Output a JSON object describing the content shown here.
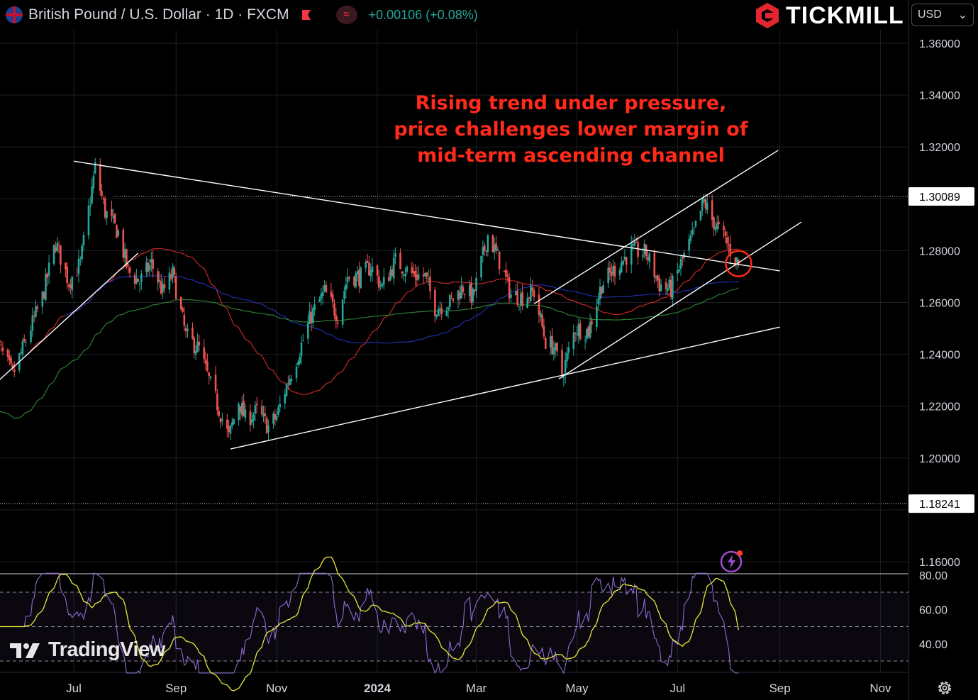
{
  "header": {
    "symbol_title": "British Pound / U.S. Dollar · 1D · FXCM",
    "change": "+0.00106 (+0.08%)",
    "wave_glyph": "≈",
    "brand": "TICKMILL",
    "currency": "USD",
    "currency_chevron": "⌄"
  },
  "watermark": "TradingView",
  "colors": {
    "background": "#000000",
    "up_candle": "#26a69a",
    "down_candle": "#ef5350",
    "annotation": "#ff2a1a",
    "rsi_line": "#8e6bd1",
    "rsi_ma": "#e8e83a",
    "ma_short": "#c62828",
    "ma_mid": "#1e2fa8",
    "ma_long": "#2e7d32"
  },
  "chart_data": {
    "type": "candlestick",
    "symbol": "GBPUSD",
    "timeframe": "1D",
    "annotation": [
      "Rising trend under pressure,",
      "price challenges lower margin of",
      "mid-term ascending channel"
    ],
    "y_ticks": [
      "1.36000",
      "1.34000",
      "1.32000",
      "1.28000",
      "1.26000",
      "1.24000",
      "1.22000",
      "1.20000",
      "1.16000"
    ],
    "price_labels": [
      {
        "label": "1.30089",
        "value": 1.30089
      },
      {
        "label": "1.18241",
        "value": 1.18241
      }
    ],
    "x_ticks": [
      "Jul",
      "Sep",
      "Nov",
      "2024",
      "Mar",
      "May",
      "Jul",
      "Sep",
      "Nov"
    ],
    "ylim": [
      1.155,
      1.372
    ],
    "price_path": [
      {
        "date": "2023-05-15",
        "close": 1.245
      },
      {
        "date": "2023-05-25",
        "close": 1.232
      },
      {
        "date": "2023-06-12",
        "close": 1.262
      },
      {
        "date": "2023-06-20",
        "close": 1.283
      },
      {
        "date": "2023-06-28",
        "close": 1.268
      },
      {
        "date": "2023-07-05",
        "close": 1.275
      },
      {
        "date": "2023-07-14",
        "close": 1.312
      },
      {
        "date": "2023-07-20",
        "close": 1.295
      },
      {
        "date": "2023-07-28",
        "close": 1.287
      },
      {
        "date": "2023-08-03",
        "close": 1.272
      },
      {
        "date": "2023-08-10",
        "close": 1.268
      },
      {
        "date": "2023-08-17",
        "close": 1.275
      },
      {
        "date": "2023-08-24",
        "close": 1.264
      },
      {
        "date": "2023-08-30",
        "close": 1.271
      },
      {
        "date": "2023-09-07",
        "close": 1.247
      },
      {
        "date": "2023-09-15",
        "close": 1.242
      },
      {
        "date": "2023-09-22",
        "close": 1.228
      },
      {
        "date": "2023-10-03",
        "close": 1.208
      },
      {
        "date": "2023-10-09",
        "close": 1.222
      },
      {
        "date": "2023-10-13",
        "close": 1.215
      },
      {
        "date": "2023-10-20",
        "close": 1.218
      },
      {
        "date": "2023-10-27",
        "close": 1.212
      },
      {
        "date": "2023-11-01",
        "close": 1.216
      },
      {
        "date": "2023-11-07",
        "close": 1.228
      },
      {
        "date": "2023-11-14",
        "close": 1.24
      },
      {
        "date": "2023-11-22",
        "close": 1.255
      },
      {
        "date": "2023-11-30",
        "close": 1.264
      },
      {
        "date": "2023-12-08",
        "close": 1.255
      },
      {
        "date": "2023-12-14",
        "close": 1.27
      },
      {
        "date": "2023-12-22",
        "close": 1.27
      },
      {
        "date": "2023-12-28",
        "close": 1.274
      },
      {
        "date": "2024-01-04",
        "close": 1.266
      },
      {
        "date": "2024-01-12",
        "close": 1.276
      },
      {
        "date": "2024-01-22",
        "close": 1.271
      },
      {
        "date": "2024-01-30",
        "close": 1.27
      },
      {
        "date": "2024-02-05",
        "close": 1.258
      },
      {
        "date": "2024-02-14",
        "close": 1.26
      },
      {
        "date": "2024-02-22",
        "close": 1.266
      },
      {
        "date": "2024-02-28",
        "close": 1.262
      },
      {
        "date": "2024-03-08",
        "close": 1.286
      },
      {
        "date": "2024-03-15",
        "close": 1.276
      },
      {
        "date": "2024-03-22",
        "close": 1.263
      },
      {
        "date": "2024-03-29",
        "close": 1.262
      },
      {
        "date": "2024-04-05",
        "close": 1.264
      },
      {
        "date": "2024-04-12",
        "close": 1.245
      },
      {
        "date": "2024-04-17",
        "close": 1.243
      },
      {
        "date": "2024-04-22",
        "close": 1.232
      },
      {
        "date": "2024-04-30",
        "close": 1.25
      },
      {
        "date": "2024-05-08",
        "close": 1.249
      },
      {
        "date": "2024-05-16",
        "close": 1.267
      },
      {
        "date": "2024-05-24",
        "close": 1.273
      },
      {
        "date": "2024-06-03",
        "close": 1.28
      },
      {
        "date": "2024-06-12",
        "close": 1.279
      },
      {
        "date": "2024-06-20",
        "close": 1.267
      },
      {
        "date": "2024-06-27",
        "close": 1.265
      },
      {
        "date": "2024-07-03",
        "close": 1.275
      },
      {
        "date": "2024-07-10",
        "close": 1.285
      },
      {
        "date": "2024-07-17",
        "close": 1.299
      },
      {
        "date": "2024-07-22",
        "close": 1.292
      },
      {
        "date": "2024-07-30",
        "close": 1.284
      },
      {
        "date": "2024-08-02",
        "close": 1.28
      },
      {
        "date": "2024-08-07",
        "close": 1.275
      }
    ],
    "trendlines": [
      {
        "name": "upper-descending",
        "p1": {
          "date": "2023-07-01",
          "price": 1.3145
        },
        "p2": {
          "date": "2024-09-01",
          "price": 1.2722
        }
      },
      {
        "name": "lower-ascending",
        "p1": {
          "date": "2023-10-04",
          "price": 1.2035
        },
        "p2": {
          "date": "2024-09-01",
          "price": 1.2505
        }
      },
      {
        "name": "early-rising",
        "p1": {
          "date": "2023-05-09",
          "price": 1.2255
        },
        "p2": {
          "date": "2023-08-09",
          "price": 1.279
        }
      },
      {
        "name": "channel-upper",
        "p1": {
          "date": "2024-04-05",
          "price": 1.2595
        },
        "p2": {
          "date": "2024-08-31",
          "price": 1.3187
        }
      },
      {
        "name": "channel-lower",
        "p1": {
          "date": "2024-04-20",
          "price": 1.2305
        },
        "p2": {
          "date": "2024-09-14",
          "price": 1.291
        }
      }
    ],
    "rsi": {
      "y_ticks": [
        "80.00",
        "60.00",
        "40.00"
      ],
      "ylim": [
        23,
        81
      ],
      "levels": [
        30,
        50,
        70
      ]
    }
  }
}
